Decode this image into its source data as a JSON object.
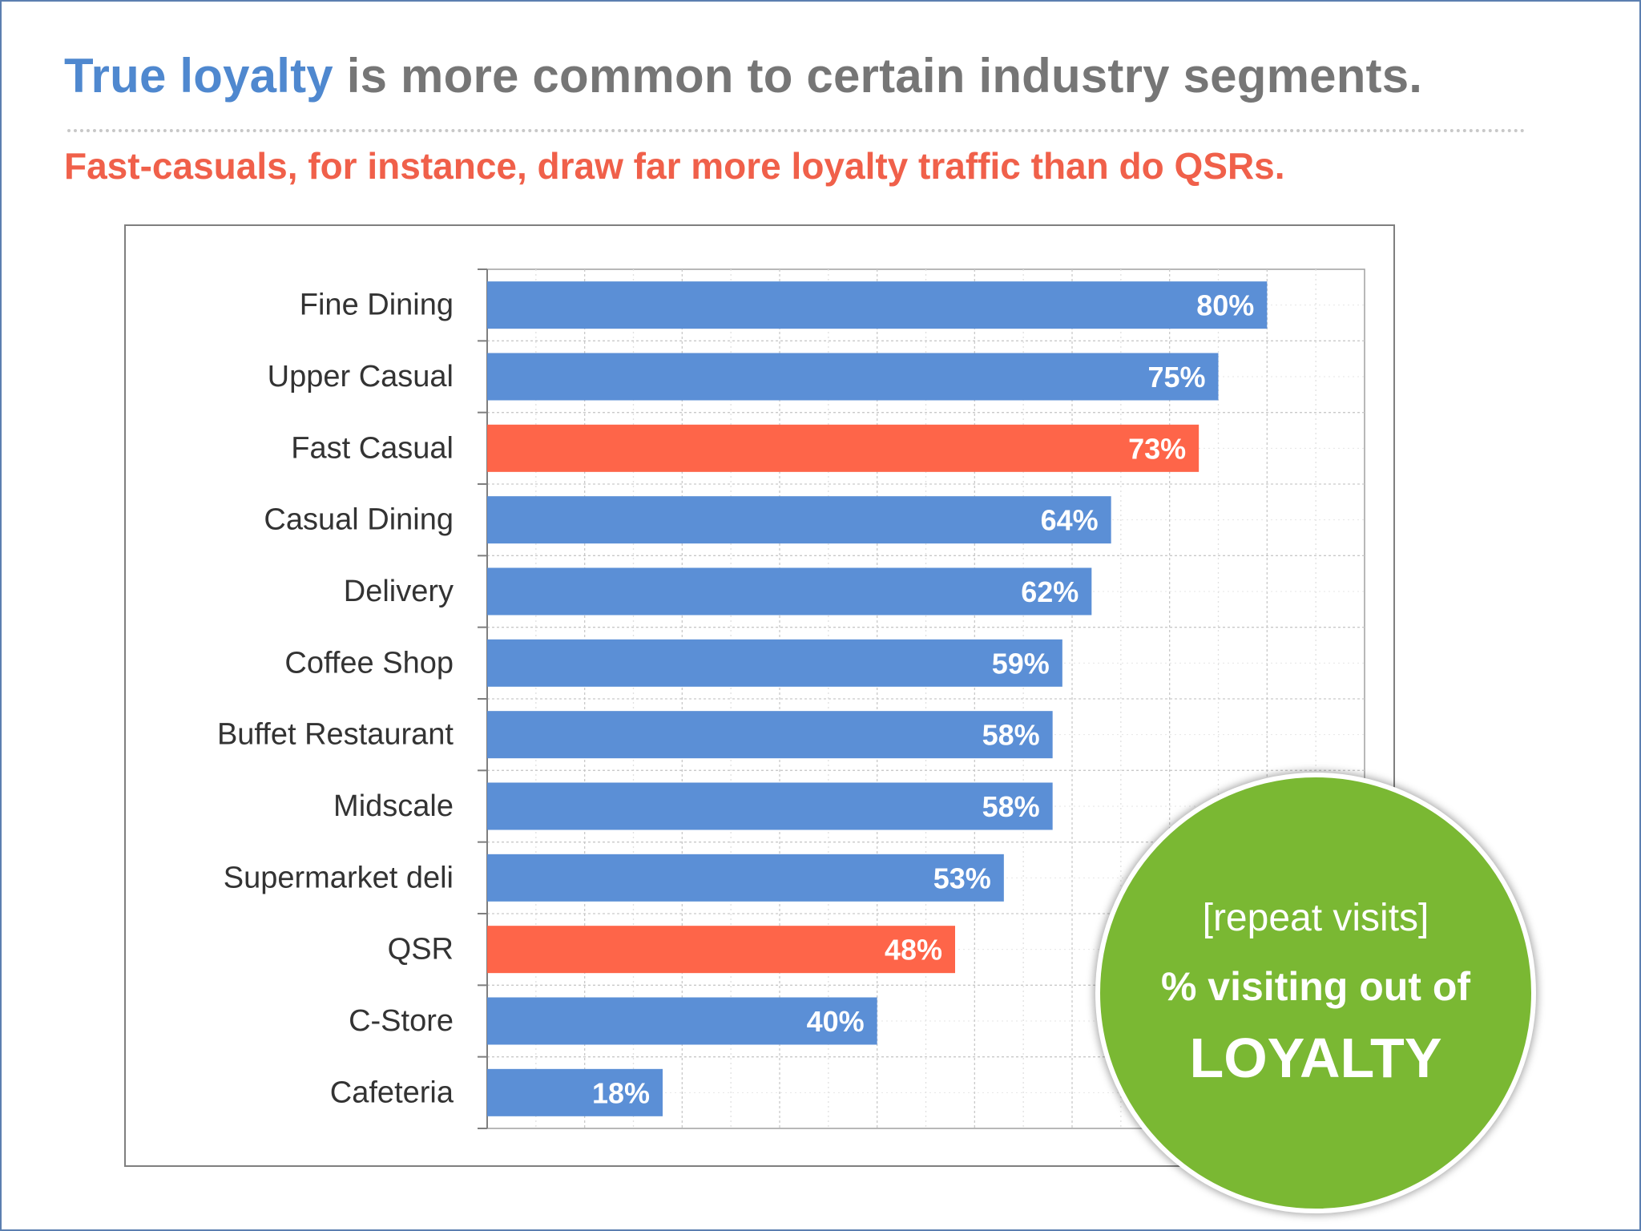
{
  "header": {
    "title_highlight": "True loyalty",
    "title_rest": " is more common to certain industry segments.",
    "subtitle": "Fast-casuals, for instance, draw far more loyalty traffic than do QSRs."
  },
  "badge": {
    "line1": "[repeat visits]",
    "line2": "% visiting out of",
    "line3": "LOYALTY"
  },
  "colors": {
    "bar_default": "#5b8fd6",
    "bar_highlight": "#fe6549",
    "badge": "#7ab833",
    "title_highlight": "#4f88cf",
    "subtitle": "#f0604a"
  },
  "chart_data": {
    "type": "bar",
    "orientation": "horizontal",
    "title": "",
    "xlabel": "",
    "ylabel": "",
    "xlim": [
      0,
      90
    ],
    "grid": true,
    "legend": "none",
    "categories": [
      "Fine Dining",
      "Upper Casual",
      "Fast Casual",
      "Casual Dining",
      "Delivery",
      "Coffee Shop",
      "Buffet Restaurant",
      "Midscale",
      "Supermarket deli",
      "QSR",
      "C-Store",
      "Cafeteria"
    ],
    "values": [
      80,
      75,
      73,
      64,
      62,
      59,
      58,
      58,
      53,
      48,
      40,
      18
    ],
    "labels": [
      "80%",
      "75%",
      "73%",
      "64%",
      "62%",
      "59%",
      "58%",
      "58%",
      "53%",
      "48%",
      "40%",
      "18%"
    ],
    "highlighted": [
      "Fast Casual",
      "QSR"
    ]
  }
}
